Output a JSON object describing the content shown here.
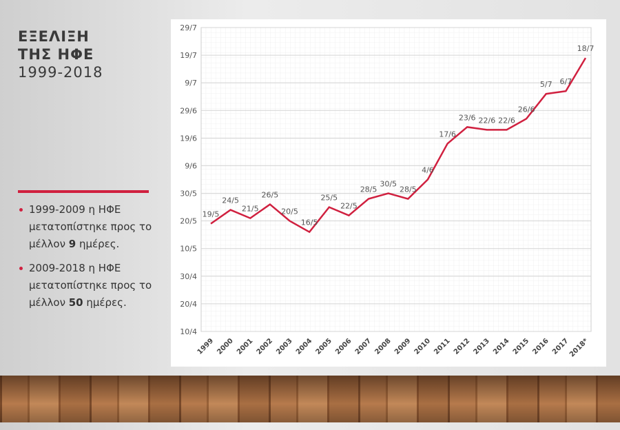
{
  "slide": {
    "title_lines": [
      "ΕΞΕΛΙΞΗ",
      "ΤΗΣ ΗΦΕ"
    ],
    "subtitle": "1999-2018",
    "bullets": [
      {
        "text": "1999-2009 η ΗΦΕ μετατοπίστηκε προς το μέλλον ",
        "bold": "9",
        "tail": " ημέρες."
      },
      {
        "text": "2009-2018 η ΗΦΕ μετατοπίστηκε προς το μέλλον ",
        "bold": "50",
        "tail": " ημέρες."
      }
    ]
  },
  "chart_data": {
    "type": "line",
    "categories": [
      "1999",
      "2000",
      "2001",
      "2002",
      "2003",
      "2004",
      "2005",
      "2006",
      "2007",
      "2008",
      "2009",
      "2010",
      "2011",
      "2012",
      "2013",
      "2014",
      "2015",
      "2016",
      "2017",
      "2018*"
    ],
    "series": [
      {
        "color": "#d0203f",
        "values": [
          139,
          144,
          141,
          146,
          140,
          136,
          145,
          142,
          148,
          150,
          148,
          155,
          168,
          174,
          173,
          173,
          177,
          186,
          187,
          199
        ],
        "value_labels": [
          "19/5",
          "24/5",
          "21/5",
          "26/5",
          "20/5",
          "16/5",
          "25/5",
          "22/5",
          "28/5",
          "30/5",
          "28/5",
          "4/6",
          "17/6",
          "23/6",
          "22/6",
          "22/6",
          "26/6",
          "5/7",
          "6/7",
          "18/7"
        ]
      }
    ],
    "ylim": [
      100,
      210
    ],
    "yticks": [
      {
        "value": 100,
        "label": "10/4"
      },
      {
        "value": 110,
        "label": "20/4"
      },
      {
        "value": 120,
        "label": "30/4"
      },
      {
        "value": 130,
        "label": "10/5"
      },
      {
        "value": 140,
        "label": "20/5"
      },
      {
        "value": 150,
        "label": "30/5"
      },
      {
        "value": 160,
        "label": "9/6"
      },
      {
        "value": 170,
        "label": "19/6"
      },
      {
        "value": 180,
        "label": "29/6"
      },
      {
        "value": 190,
        "label": "9/7"
      },
      {
        "value": 200,
        "label": "19/7"
      },
      {
        "value": 210,
        "label": "29/7"
      }
    ],
    "grid": true
  }
}
